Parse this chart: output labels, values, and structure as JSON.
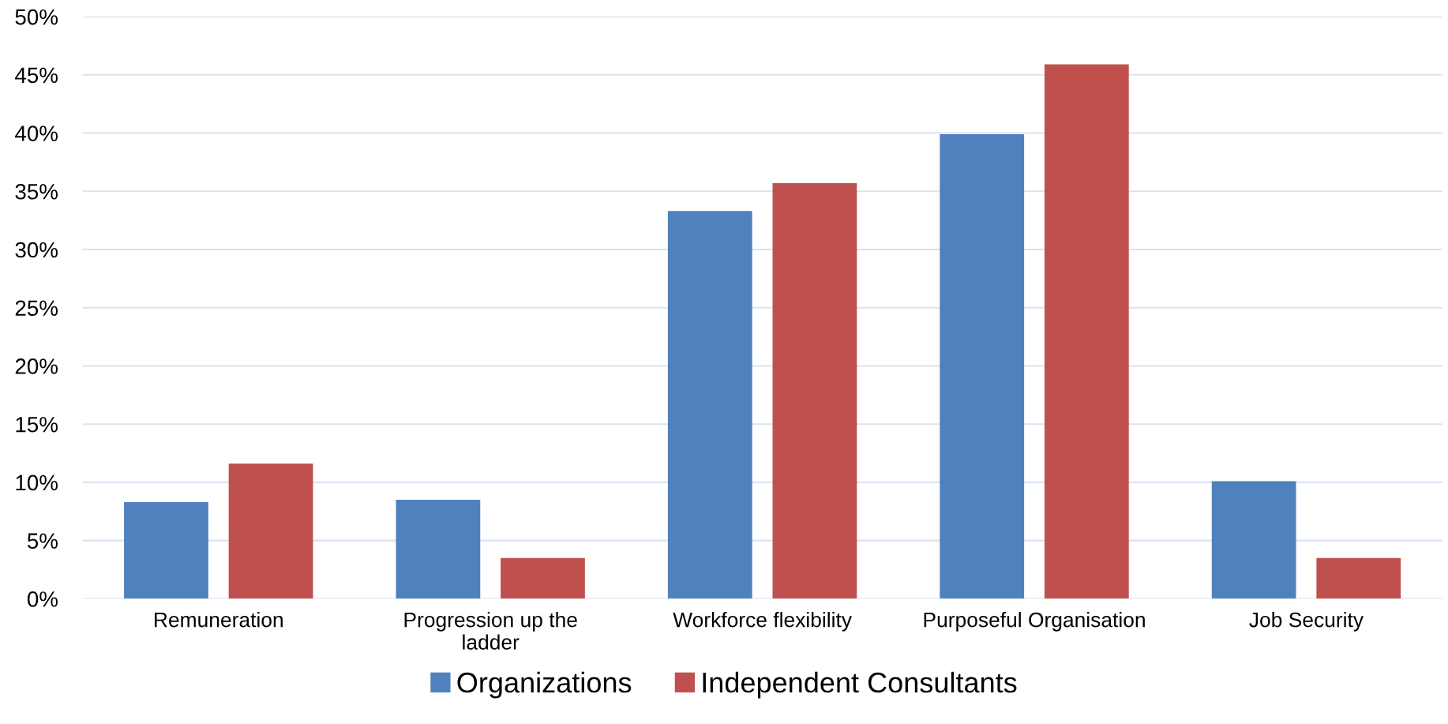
{
  "chart_data": {
    "type": "bar",
    "categories": [
      "Remuneration",
      "Progression up the\nladder",
      "Workforce flexibility",
      "Purposeful Organisation",
      "Job Security"
    ],
    "series": [
      {
        "name": "Organizations",
        "color": "#4f81bd",
        "values": [
          8.3,
          8.5,
          33.3,
          39.9,
          10.1
        ]
      },
      {
        "name": "Independent Consultants",
        "color": "#c0504d",
        "values": [
          11.6,
          3.5,
          35.7,
          45.9,
          3.5
        ]
      }
    ],
    "ylim": [
      0,
      50
    ],
    "yticks": [
      {
        "value": 0,
        "label": "0%"
      },
      {
        "value": 5,
        "label": "5%"
      },
      {
        "value": 10,
        "label": "10%"
      },
      {
        "value": 15,
        "label": "15%"
      },
      {
        "value": 20,
        "label": "20%"
      },
      {
        "value": 25,
        "label": "25%"
      },
      {
        "value": 30,
        "label": "30%"
      },
      {
        "value": 35,
        "label": "35%"
      },
      {
        "value": 40,
        "label": "40%"
      },
      {
        "value": 45,
        "label": "45%"
      },
      {
        "value": 50,
        "label": "50%"
      }
    ],
    "grid": "y",
    "legend": "bottom"
  }
}
